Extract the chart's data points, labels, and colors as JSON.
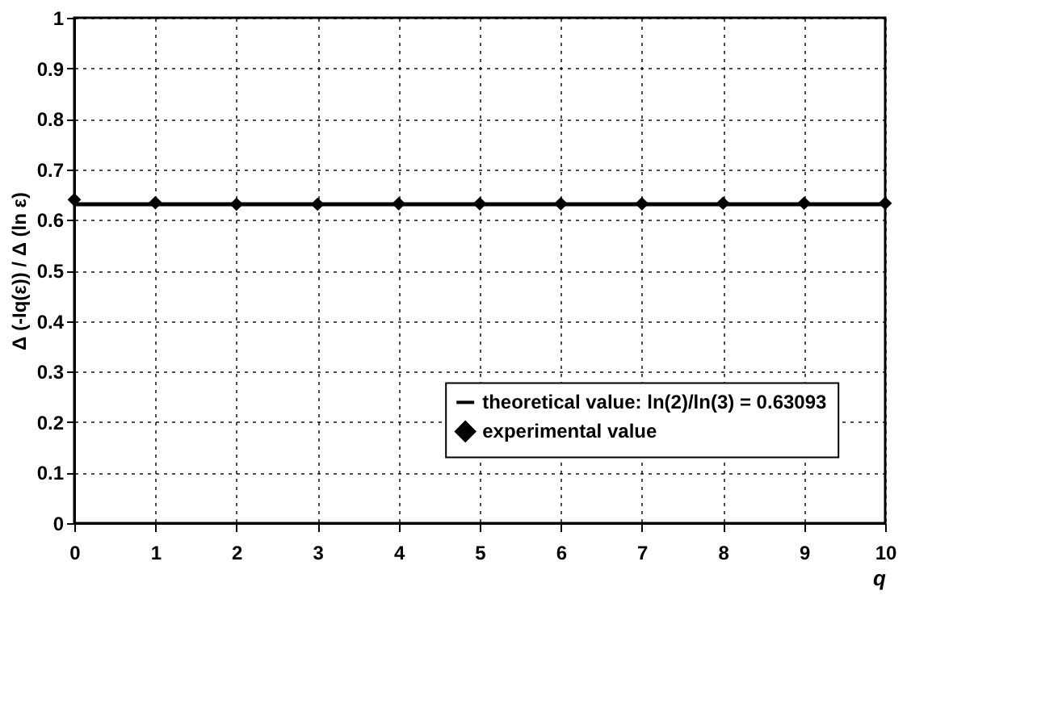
{
  "chart_data": {
    "type": "line",
    "xlabel": "q",
    "ylabel": "Δ (-Iq(ε)) / Δ (ln ε)",
    "xlim": [
      0,
      10
    ],
    "xticks": [
      0,
      1,
      2,
      3,
      4,
      5,
      6,
      7,
      8,
      9,
      10
    ],
    "ylim": [
      0,
      1
    ],
    "yticks": [
      0,
      0.1,
      0.2,
      0.3,
      0.4,
      0.5,
      0.6,
      0.7,
      0.8,
      0.9,
      1
    ],
    "grid": true,
    "legend": "right",
    "series": [
      {
        "name": "theoretical value: ln(2)/ln(3) = 0.63093",
        "color": "#000000",
        "line_style": "solid",
        "marker": "none",
        "x": [
          0,
          10
        ],
        "values": [
          0.631,
          0.631
        ]
      },
      {
        "name": "experimental value",
        "type": "scatter",
        "color": "#000000",
        "marker": "diamond",
        "x": [
          0,
          1,
          2,
          3,
          4,
          5,
          6,
          7,
          8,
          9,
          10
        ],
        "values": [
          0.64,
          0.634,
          0.631,
          0.631,
          0.632,
          0.632,
          0.632,
          0.632,
          0.633,
          0.633,
          0.633
        ]
      }
    ]
  }
}
